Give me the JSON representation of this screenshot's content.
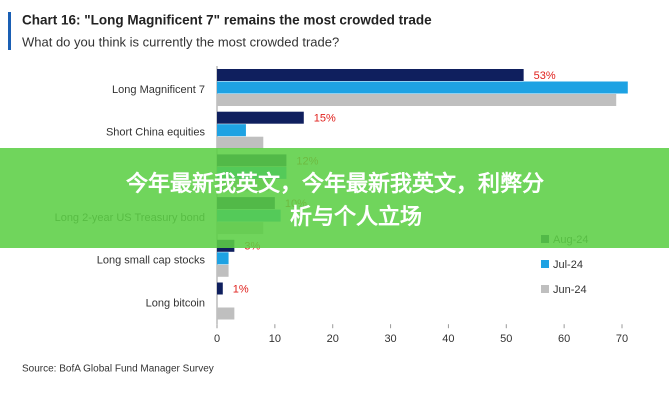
{
  "chart_data": {
    "type": "bar",
    "orientation": "horizontal",
    "title": "Chart 16: \"Long Magnificent 7\" remains the most crowded trade",
    "subtitle": "What do you think is currently the most crowded trade?",
    "source": "Source: BofA Global Fund Manager Survey",
    "categories": [
      "Long Magnificent 7",
      "Short China equities",
      null,
      "Long 2-year US Treasury bond",
      "Long small cap stocks",
      "Long bitcoin"
    ],
    "series": [
      {
        "name": "Aug-24",
        "color": "#0f1f5e",
        "values": [
          53,
          15,
          12,
          10,
          3,
          1
        ],
        "value_labels": [
          "53%",
          "15%",
          "12%",
          "10%",
          "3%",
          "1%"
        ]
      },
      {
        "name": "Jul-24",
        "color": "#1ea2e3",
        "values": [
          71,
          5,
          12,
          11,
          2,
          0
        ]
      },
      {
        "name": "Jun-24",
        "color": "#bfbfbf",
        "values": [
          69,
          8,
          9,
          8,
          2,
          3
        ]
      }
    ],
    "xlim": [
      0,
      70
    ],
    "xticks": [
      0,
      10,
      20,
      30,
      40,
      50,
      60,
      70
    ],
    "label_color": "#e0201c"
  },
  "banner": {
    "lines": [
      "今年最新我英文，今年最新我英文，利弊分",
      "析与个人立场"
    ]
  }
}
